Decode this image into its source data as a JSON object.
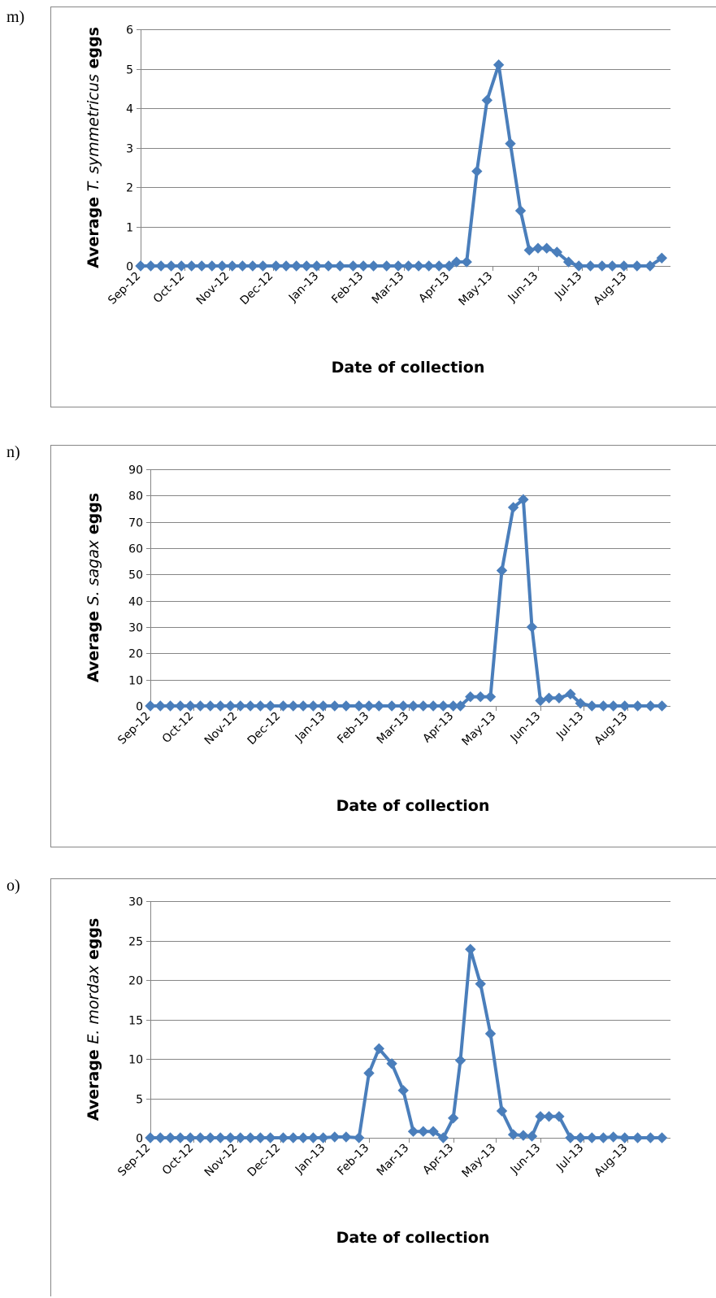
{
  "chart_data": [
    {
      "panel_label": "m)",
      "type": "line",
      "marker": "diamond",
      "xlabel": "Date of collection",
      "ylabel_parts": [
        "Average ",
        "T. symmetricus",
        " eggs"
      ],
      "ylim": [
        0,
        6
      ],
      "yticks": [
        0,
        1,
        2,
        3,
        4,
        5,
        6
      ],
      "xlim": [
        "2012-09-01",
        "2013-08-31"
      ],
      "month_labels": [
        "Sep-12",
        "Oct-12",
        "Nov-12",
        "Dec-12",
        "Jan-13",
        "Feb-13",
        "Mar-13",
        "Apr-13",
        "May-13",
        "Jun-13",
        "Jul-13",
        "Aug-13"
      ],
      "month_dates": [
        "2012-09-01",
        "2012-10-01",
        "2012-11-01",
        "2012-12-01",
        "2013-01-01",
        "2013-02-01",
        "2013-03-01",
        "2013-04-01",
        "2013-05-01",
        "2013-06-01",
        "2013-07-01",
        "2013-08-01"
      ],
      "grid": true,
      "color": "#4a7ebb",
      "x": [
        "2012-09-01",
        "2012-09-08",
        "2012-09-15",
        "2012-09-22",
        "2012-09-29",
        "2012-10-06",
        "2012-10-13",
        "2012-10-20",
        "2012-10-27",
        "2012-11-03",
        "2012-11-10",
        "2012-11-17",
        "2012-11-24",
        "2012-12-03",
        "2012-12-10",
        "2012-12-17",
        "2012-12-24",
        "2012-12-31",
        "2013-01-08",
        "2013-01-16",
        "2013-01-25",
        "2013-02-01",
        "2013-02-08",
        "2013-02-17",
        "2013-02-25",
        "2013-03-04",
        "2013-03-11",
        "2013-03-18",
        "2013-03-25",
        "2013-04-01",
        "2013-04-06",
        "2013-04-13",
        "2013-04-20",
        "2013-04-27",
        "2013-05-05",
        "2013-05-13",
        "2013-05-20",
        "2013-05-26",
        "2013-06-01",
        "2013-06-07",
        "2013-06-14",
        "2013-06-22",
        "2013-06-29",
        "2013-07-07",
        "2013-07-15",
        "2013-07-22",
        "2013-07-30",
        "2013-08-08",
        "2013-08-17",
        "2013-08-25"
      ],
      "values": [
        0,
        0,
        0,
        0,
        0,
        0,
        0,
        0,
        0,
        0,
        0,
        0,
        0,
        0,
        0,
        0,
        0,
        0,
        0,
        0,
        0,
        0,
        0,
        0,
        0,
        0,
        0,
        0,
        0,
        0,
        0.1,
        0.1,
        2.4,
        4.2,
        5.1,
        3.1,
        1.4,
        0.4,
        0.45,
        0.45,
        0.35,
        0.1,
        0,
        0,
        0,
        0,
        0,
        0,
        0,
        0.2
      ]
    },
    {
      "panel_label": "n)",
      "type": "line",
      "marker": "diamond",
      "xlabel": "Date of collection",
      "ylabel_parts": [
        "Average ",
        "S. sagax",
        " eggs"
      ],
      "ylim": [
        0,
        90
      ],
      "yticks": [
        0,
        10,
        20,
        30,
        40,
        50,
        60,
        70,
        80,
        90
      ],
      "xlim": [
        "2012-09-01",
        "2013-08-31"
      ],
      "month_labels": [
        "Sep-12",
        "Oct-12",
        "Nov-12",
        "Dec-12",
        "Jan-13",
        "Feb-13",
        "Mar-13",
        "Apr-13",
        "May-13",
        "Jun-13",
        "Jul-13",
        "Aug-13"
      ],
      "month_dates": [
        "2012-09-01",
        "2012-10-01",
        "2012-11-01",
        "2012-12-01",
        "2013-01-01",
        "2013-02-01",
        "2013-03-01",
        "2013-04-01",
        "2013-05-01",
        "2013-06-01",
        "2013-07-01",
        "2013-08-01"
      ],
      "grid": true,
      "color": "#4a7ebb",
      "x": [
        "2012-09-01",
        "2012-09-08",
        "2012-09-15",
        "2012-09-22",
        "2012-09-29",
        "2012-10-06",
        "2012-10-13",
        "2012-10-20",
        "2012-10-27",
        "2012-11-03",
        "2012-11-10",
        "2012-11-17",
        "2012-11-24",
        "2012-12-03",
        "2012-12-10",
        "2012-12-17",
        "2012-12-24",
        "2012-12-31",
        "2013-01-08",
        "2013-01-16",
        "2013-01-25",
        "2013-02-01",
        "2013-02-08",
        "2013-02-17",
        "2013-02-25",
        "2013-03-04",
        "2013-03-11",
        "2013-03-18",
        "2013-03-25",
        "2013-04-01",
        "2013-04-06",
        "2013-04-13",
        "2013-04-20",
        "2013-04-27",
        "2013-05-05",
        "2013-05-13",
        "2013-05-20",
        "2013-05-26",
        "2013-06-01",
        "2013-06-07",
        "2013-06-14",
        "2013-06-22",
        "2013-06-29",
        "2013-07-07",
        "2013-07-15",
        "2013-07-22",
        "2013-07-30",
        "2013-08-08",
        "2013-08-17",
        "2013-08-25"
      ],
      "values": [
        0,
        0,
        0,
        0,
        0,
        0,
        0,
        0,
        0,
        0,
        0,
        0,
        0,
        0,
        0,
        0,
        0,
        0,
        0,
        0,
        0,
        0,
        0,
        0,
        0,
        0,
        0,
        0,
        0,
        0,
        0,
        3.5,
        3.5,
        3.5,
        51.5,
        75.5,
        78.5,
        30,
        2,
        3,
        3,
        4.5,
        1,
        0,
        0,
        0,
        0,
        0,
        0,
        0
      ]
    },
    {
      "panel_label": "o)",
      "type": "line",
      "marker": "diamond",
      "xlabel": "Date of collection",
      "ylabel_parts": [
        "Average ",
        "E. mordax",
        " eggs"
      ],
      "ylim": [
        0,
        30
      ],
      "yticks": [
        0,
        5,
        10,
        15,
        20,
        25,
        30
      ],
      "xlim": [
        "2012-09-01",
        "2013-08-31"
      ],
      "month_labels": [
        "Sep-12",
        "Oct-12",
        "Nov-12",
        "Dec-12",
        "Jan-13",
        "Feb-13",
        "Mar-13",
        "Apr-13",
        "May-13",
        "Jun-13",
        "Jul-13",
        "Aug-13"
      ],
      "month_dates": [
        "2012-09-01",
        "2012-10-01",
        "2012-11-01",
        "2012-12-01",
        "2013-01-01",
        "2013-02-01",
        "2013-03-01",
        "2013-04-01",
        "2013-05-01",
        "2013-06-01",
        "2013-07-01",
        "2013-08-01"
      ],
      "grid": true,
      "color": "#4a7ebb",
      "x": [
        "2012-09-01",
        "2012-09-08",
        "2012-09-15",
        "2012-09-22",
        "2012-09-29",
        "2012-10-06",
        "2012-10-13",
        "2012-10-20",
        "2012-10-27",
        "2012-11-03",
        "2012-11-10",
        "2012-11-17",
        "2012-11-24",
        "2012-12-03",
        "2012-12-10",
        "2012-12-17",
        "2012-12-24",
        "2012-12-31",
        "2013-01-08",
        "2013-01-16",
        "2013-01-25",
        "2013-02-01",
        "2013-02-08",
        "2013-02-17",
        "2013-02-25",
        "2013-03-04",
        "2013-03-11",
        "2013-03-18",
        "2013-03-25",
        "2013-04-01",
        "2013-04-06",
        "2013-04-13",
        "2013-04-20",
        "2013-04-27",
        "2013-05-05",
        "2013-05-13",
        "2013-05-20",
        "2013-05-26",
        "2013-06-01",
        "2013-06-07",
        "2013-06-14",
        "2013-06-22",
        "2013-06-29",
        "2013-07-07",
        "2013-07-15",
        "2013-07-22",
        "2013-07-30",
        "2013-08-08",
        "2013-08-17",
        "2013-08-25"
      ],
      "values": [
        0,
        0,
        0,
        0,
        0,
        0,
        0,
        0,
        0,
        0,
        0,
        0,
        0,
        0,
        0,
        0,
        0,
        0,
        0.1,
        0.1,
        0,
        8.2,
        11.3,
        9.4,
        6,
        0.8,
        0.8,
        0.8,
        0,
        2.5,
        9.8,
        23.9,
        19.5,
        13.2,
        3.4,
        0.4,
        0.3,
        0.2,
        2.7,
        2.7,
        2.7,
        0,
        0,
        0,
        0,
        0.1,
        0,
        0,
        0,
        0
      ]
    }
  ]
}
